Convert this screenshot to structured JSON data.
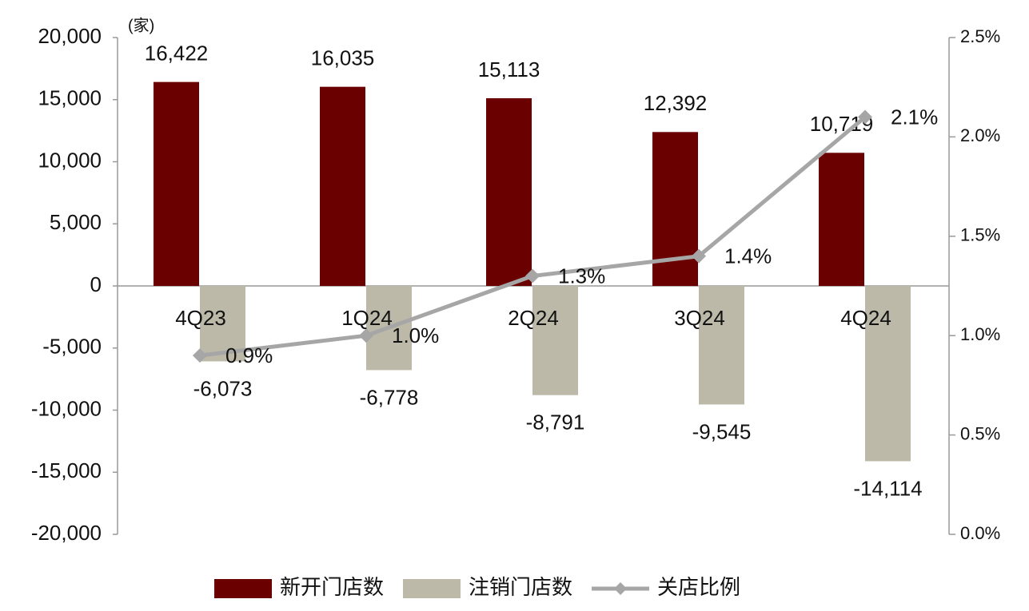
{
  "chart_data": {
    "type": "bar",
    "unit_label": "(家)",
    "categories": [
      "4Q23",
      "1Q24",
      "2Q24",
      "3Q24",
      "4Q24"
    ],
    "series": [
      {
        "name": "新开门店数",
        "color": "#6b0000",
        "values": [
          16422,
          16035,
          15113,
          12392,
          10719
        ],
        "value_labels": [
          "16,422",
          "16,035",
          "15,113",
          "12,392",
          "10,719"
        ]
      },
      {
        "name": "注销门店数",
        "color": "#bcb9a8",
        "values": [
          -6073,
          -6778,
          -8791,
          -9545,
          -14114
        ],
        "value_labels": [
          "-6,073",
          "-6,778",
          "-8,791",
          "-9,545",
          "-14,114"
        ]
      },
      {
        "name": "关店比例",
        "type": "line",
        "axis": "y2",
        "color": "#a6a6a6",
        "values": [
          0.9,
          1.0,
          1.3,
          1.4,
          2.1
        ],
        "value_labels": [
          "0.9%",
          "1.0%",
          "1.3%",
          "1.4%",
          "2.1%"
        ]
      }
    ],
    "ylim": [
      -20000,
      20000
    ],
    "yticks": [
      {
        "value": -20000,
        "label": "-20,000"
      },
      {
        "value": -15000,
        "label": "-15,000"
      },
      {
        "value": -10000,
        "label": "-10,000"
      },
      {
        "value": -5000,
        "label": "-5,000"
      },
      0,
      {
        "value": 5000,
        "label": "5,000"
      },
      {
        "value": 10000,
        "label": "10,000"
      },
      {
        "value": 15000,
        "label": "15,000"
      },
      {
        "value": 20000,
        "label": "20,000"
      }
    ],
    "y2lim": [
      0,
      2.5
    ],
    "y2ticks": [
      {
        "value": 0,
        "label": "0.0%"
      },
      {
        "value": 0.5,
        "label": "0.5%"
      },
      {
        "value": 1,
        "label": "1.0%"
      },
      {
        "value": 1.5,
        "label": "1.5%"
      },
      {
        "value": 2,
        "label": "2.0%"
      },
      {
        "value": 2.5,
        "label": "2.5%"
      }
    ],
    "legend": "bottom"
  }
}
